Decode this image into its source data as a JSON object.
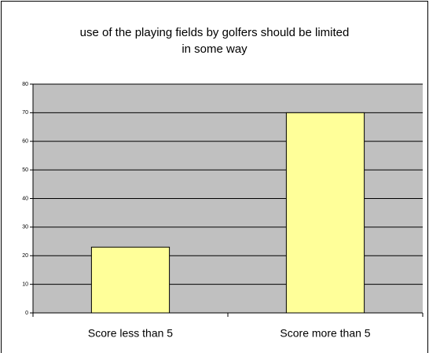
{
  "chart_data": {
    "type": "bar",
    "title": [
      "use of the playing fields by golfers should be limited",
      "in some way"
    ],
    "categories": [
      "Score less than 5",
      "Score more than 5"
    ],
    "values": [
      23,
      70
    ],
    "color": "#ffff99",
    "ylim": [
      0,
      80
    ],
    "yticks": [
      0,
      10,
      20,
      30,
      40,
      50,
      60,
      70,
      80
    ],
    "grid": true
  }
}
